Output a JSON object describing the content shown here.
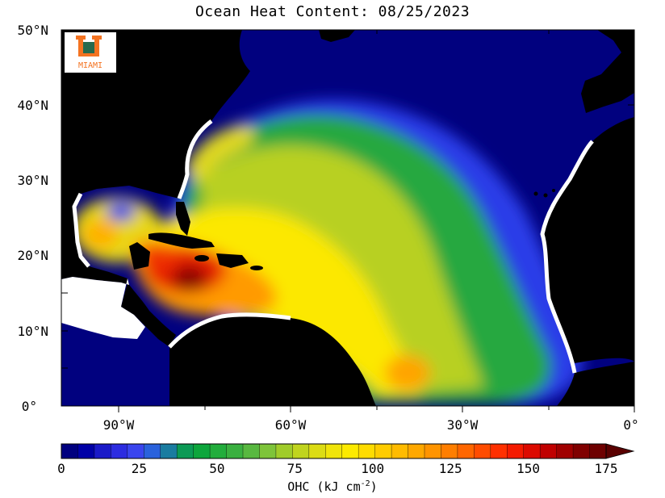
{
  "title": "Ocean Heat Content: 08/25/2023",
  "logo": {
    "letter": "U",
    "text": "MIAMI",
    "colors": {
      "green": "#005030",
      "orange": "#f47321"
    }
  },
  "map": {
    "lon_range": [
      -100,
      0
    ],
    "lat_range": [
      0,
      50
    ],
    "lat_labels": [
      "50°N",
      "40°N",
      "30°N",
      "20°N",
      "10°N",
      "0°"
    ],
    "lon_labels": [
      "90°W",
      "60°W",
      "30°W",
      "0°"
    ],
    "colors": {
      "land": "#000000",
      "no_data": "#ffffff",
      "ocean_low": "#010180"
    }
  },
  "colorbar": {
    "tick_labels": [
      "0",
      "25",
      "50",
      "75",
      "100",
      "125",
      "150",
      "175"
    ],
    "units_main": "OHC (kJ cm",
    "units_exp": "-2",
    "units_end": ")",
    "range": [
      0,
      175
    ],
    "step": 5,
    "colors": [
      "#00007f",
      "#0000a6",
      "#1a1ac8",
      "#2c2ce0",
      "#3a45ee",
      "#2a62dc",
      "#1a7ca0",
      "#0c9a55",
      "#0da63c",
      "#22ad3c",
      "#3ab040",
      "#58b840",
      "#7ec43a",
      "#a0cc2a",
      "#c0d41e",
      "#dcdc14",
      "#f0e40a",
      "#fcea00",
      "#ffdc00",
      "#ffcc00",
      "#ffbb00",
      "#ffa800",
      "#ff9400",
      "#ff7e00",
      "#ff6600",
      "#ff4c00",
      "#ff3000",
      "#f41a00",
      "#dc0a00",
      "#c00000",
      "#a00000",
      "#800000",
      "#6e0000",
      "#5a0000"
    ]
  }
}
